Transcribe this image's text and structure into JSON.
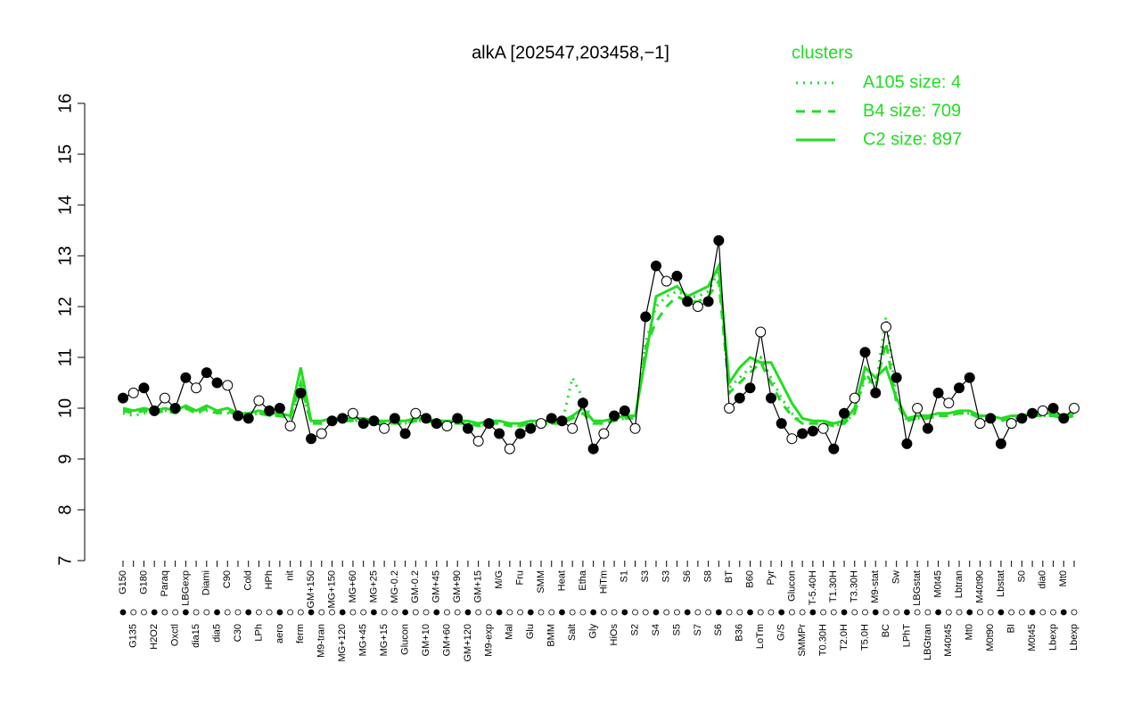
{
  "chart_data": {
    "type": "line",
    "title": "alkA [202547,203458,−1]",
    "legend_title": "clusters",
    "legend_position": "top-right",
    "ylim": [
      7,
      16
    ],
    "yticks": [
      7,
      8,
      9,
      10,
      11,
      12,
      13,
      14,
      15,
      16
    ],
    "categories": [
      "G150",
      "G135",
      "G180",
      "H2O2",
      "Paraq",
      "Oxctl",
      "LBGexp",
      "dia15",
      "Diami",
      "dia5",
      "C90",
      "C30",
      "Cold",
      "LPh",
      "HPh",
      "aero",
      "nit",
      "ferm",
      "GM+150",
      "M9-tran",
      "MG+150",
      "MG+120",
      "MG+60",
      "MG+45",
      "MG+25",
      "MG+15",
      "MG-0.2",
      "Glucon",
      "GM-0.2",
      "GM+10",
      "GM+45",
      "GM+60",
      "GM+90",
      "GM+120",
      "GM+15",
      "M9-exp",
      "M/G",
      "Mal",
      "Fru",
      "Glu",
      "SMM",
      "BMM",
      "Heat",
      "Salt",
      "Etha",
      "Gly",
      "HiTm",
      "HiOs",
      "S1",
      "S2",
      "S3",
      "S4",
      "S3",
      "S5",
      "S6",
      "S7",
      "S8",
      "S6",
      "BT",
      "B36",
      "B60",
      "LoTm",
      "Pyr",
      "G/S",
      "Glucon",
      "SMMPr",
      "T-5.40H",
      "T0.30H",
      "T1.30H",
      "T2.0H",
      "T3.30H",
      "T5.0H",
      "M9-stat",
      "BC",
      "Sw",
      "LPhT",
      "LBGstat",
      "LBGtran",
      "M0t45",
      "M40t45",
      "Lbtran",
      "Mt0",
      "M40t90",
      "M0t90",
      "Lbstat",
      "BI",
      "S0",
      "M0t45",
      "dia0",
      "Lbexp",
      "Mt0",
      "Lbexp"
    ],
    "values": [
      10.2,
      10.3,
      10.4,
      9.95,
      10.2,
      10.0,
      10.6,
      10.4,
      10.7,
      10.5,
      10.45,
      9.85,
      9.8,
      10.15,
      9.95,
      10.0,
      9.65,
      10.3,
      9.4,
      9.5,
      9.75,
      9.8,
      9.9,
      9.7,
      9.75,
      9.6,
      9.8,
      9.5,
      9.9,
      9.8,
      9.7,
      9.65,
      9.8,
      9.6,
      9.35,
      9.7,
      9.5,
      9.2,
      9.5,
      9.6,
      9.7,
      9.8,
      9.75,
      9.6,
      10.1,
      9.2,
      9.5,
      9.85,
      9.95,
      9.6,
      11.8,
      12.8,
      12.5,
      12.6,
      12.1,
      12.0,
      12.1,
      13.3,
      10.0,
      10.2,
      10.4,
      11.5,
      10.2,
      9.7,
      9.4,
      9.5,
      9.55,
      9.6,
      9.2,
      9.9,
      10.2,
      11.1,
      10.3,
      11.6,
      10.6,
      9.3,
      10.0,
      9.6,
      10.3,
      10.1,
      10.4,
      10.6,
      9.7,
      9.8,
      9.3,
      9.7,
      9.8,
      9.9,
      9.95,
      10.0,
      9.8,
      10.0
    ],
    "series": [
      {
        "name": "A105 size: 4",
        "color": "#22dd22",
        "style": "dotted",
        "values": [
          9.9,
          9.85,
          9.9,
          9.9,
          9.95,
          9.95,
          10.0,
          9.9,
          9.95,
          9.9,
          9.9,
          9.85,
          9.85,
          9.9,
          9.85,
          9.85,
          9.8,
          10.4,
          9.7,
          9.7,
          9.75,
          9.75,
          9.75,
          9.75,
          9.7,
          9.7,
          9.7,
          9.7,
          9.75,
          9.75,
          9.7,
          9.7,
          9.7,
          9.7,
          9.65,
          9.7,
          9.7,
          9.65,
          9.65,
          9.7,
          9.7,
          9.7,
          9.7,
          10.6,
          10.2,
          9.7,
          9.7,
          9.75,
          9.8,
          9.8,
          11.3,
          12.0,
          12.2,
          12.3,
          12.2,
          12.2,
          12.3,
          12.7,
          10.4,
          10.6,
          10.8,
          11.0,
          10.6,
          10.2,
          9.9,
          9.7,
          9.7,
          9.7,
          9.65,
          9.7,
          9.9,
          10.6,
          10.4,
          11.8,
          10.2,
          9.75,
          9.8,
          9.8,
          9.85,
          9.85,
          9.9,
          9.9,
          9.8,
          9.8,
          9.75,
          9.8,
          9.8,
          9.85,
          9.85,
          9.85,
          9.8,
          9.85
        ]
      },
      {
        "name": "B4 size: 709",
        "color": "#22dd22",
        "style": "dashed",
        "values": [
          9.95,
          9.9,
          9.95,
          9.9,
          9.95,
          9.9,
          10.0,
          9.9,
          10.0,
          9.9,
          9.95,
          9.85,
          9.85,
          9.9,
          9.85,
          9.85,
          9.8,
          10.5,
          9.7,
          9.7,
          9.75,
          9.75,
          9.75,
          9.75,
          9.7,
          9.7,
          9.7,
          9.7,
          9.75,
          9.75,
          9.7,
          9.7,
          9.7,
          9.7,
          9.65,
          9.7,
          9.7,
          9.65,
          9.65,
          9.7,
          9.7,
          9.7,
          9.7,
          9.8,
          9.9,
          9.7,
          9.7,
          9.75,
          9.8,
          9.8,
          11.2,
          11.7,
          12.0,
          12.2,
          12.1,
          12.1,
          12.2,
          12.5,
          10.3,
          10.5,
          10.7,
          10.9,
          10.5,
          10.1,
          9.85,
          9.7,
          9.7,
          9.7,
          9.65,
          9.7,
          9.9,
          10.7,
          10.4,
          11.3,
          10.1,
          9.75,
          9.8,
          9.8,
          9.85,
          9.85,
          9.9,
          9.9,
          9.8,
          9.8,
          9.75,
          9.8,
          9.8,
          9.85,
          9.85,
          9.85,
          9.8,
          9.85
        ]
      },
      {
        "name": "C2 size: 897",
        "color": "#22dd22",
        "style": "solid",
        "values": [
          10.0,
          9.95,
          10.0,
          9.95,
          10.0,
          9.95,
          10.05,
          9.95,
          10.05,
          9.95,
          10.0,
          9.9,
          9.9,
          9.95,
          9.9,
          9.9,
          9.85,
          10.8,
          9.75,
          9.75,
          9.8,
          9.8,
          9.8,
          9.8,
          9.75,
          9.75,
          9.75,
          9.75,
          9.8,
          9.8,
          9.75,
          9.75,
          9.75,
          9.75,
          9.7,
          9.75,
          9.75,
          9.7,
          9.7,
          9.75,
          9.75,
          9.75,
          9.75,
          9.85,
          10.0,
          9.75,
          9.75,
          9.8,
          9.85,
          9.85,
          11.0,
          12.2,
          12.3,
          12.4,
          12.2,
          12.3,
          12.4,
          12.8,
          10.5,
          10.8,
          11.0,
          10.9,
          10.9,
          10.5,
          10.1,
          9.8,
          9.75,
          9.75,
          9.7,
          9.75,
          10.0,
          10.8,
          10.6,
          10.8,
          10.2,
          9.8,
          9.85,
          9.85,
          9.9,
          9.9,
          9.95,
          9.95,
          9.85,
          9.85,
          9.8,
          9.85,
          9.85,
          9.9,
          9.9,
          9.9,
          9.85,
          9.9
        ]
      }
    ]
  }
}
